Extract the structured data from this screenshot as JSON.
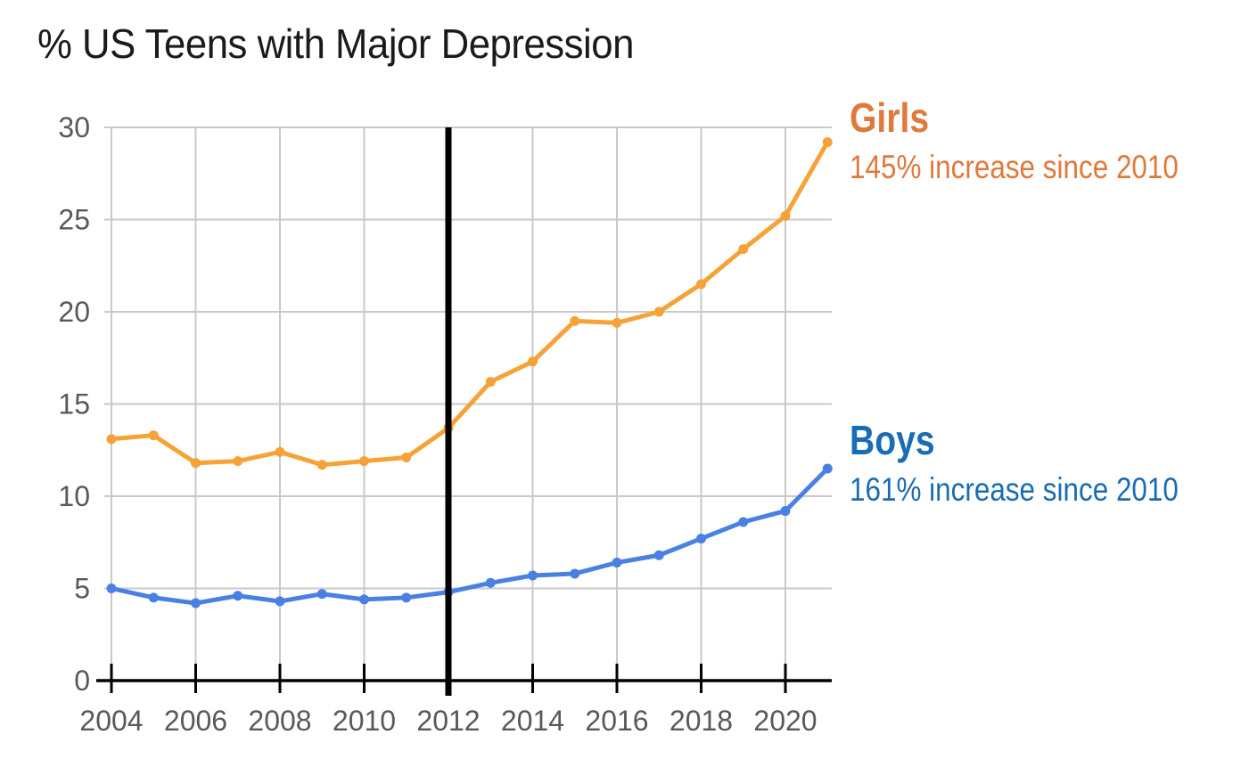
{
  "header": {
    "title": "% US Teens with Major Depression"
  },
  "chart_data": {
    "type": "line",
    "title": "% US Teens with Major Depression",
    "xlabel": "",
    "ylabel": "",
    "x": [
      2004,
      2005,
      2006,
      2007,
      2008,
      2009,
      2010,
      2011,
      2012,
      2013,
      2014,
      2015,
      2016,
      2017,
      2018,
      2019,
      2020,
      2021
    ],
    "series": [
      {
        "name": "Girls",
        "color": "#F7A237",
        "values": [
          13.1,
          13.3,
          11.8,
          11.9,
          12.4,
          11.7,
          11.9,
          12.1,
          13.7,
          16.2,
          17.3,
          19.5,
          19.4,
          20.0,
          21.5,
          23.4,
          25.2,
          29.2
        ]
      },
      {
        "name": "Boys",
        "color": "#4981E3",
        "values": [
          5.0,
          4.5,
          4.2,
          4.6,
          4.3,
          4.7,
          4.4,
          4.5,
          4.8,
          5.3,
          5.7,
          5.8,
          6.4,
          6.8,
          7.7,
          8.6,
          9.2,
          11.5
        ]
      }
    ],
    "x_ticks": [
      "2004",
      "2006",
      "2008",
      "2010",
      "2012",
      "2014",
      "2016",
      "2018",
      "2020"
    ],
    "y_ticks": [
      "0",
      "5",
      "10",
      "15",
      "20",
      "25",
      "30"
    ],
    "xlim": [
      2004,
      2021.1
    ],
    "ylim": [
      0,
      30
    ],
    "grid": true,
    "grid_color": "#C9C9C9",
    "axis_color": "#000000",
    "tick_label_color": "#58595B",
    "annotations": [
      {
        "type": "vline",
        "x": 2012,
        "color": "#000000"
      }
    ],
    "legend_position": "right"
  },
  "legend": {
    "girls": {
      "label": "Girls",
      "subtitle": "145% increase since 2010",
      "color": "#E0793C"
    },
    "boys": {
      "label": "Boys",
      "subtitle": "161% increase since 2010",
      "color": "#1A6CB5"
    }
  }
}
